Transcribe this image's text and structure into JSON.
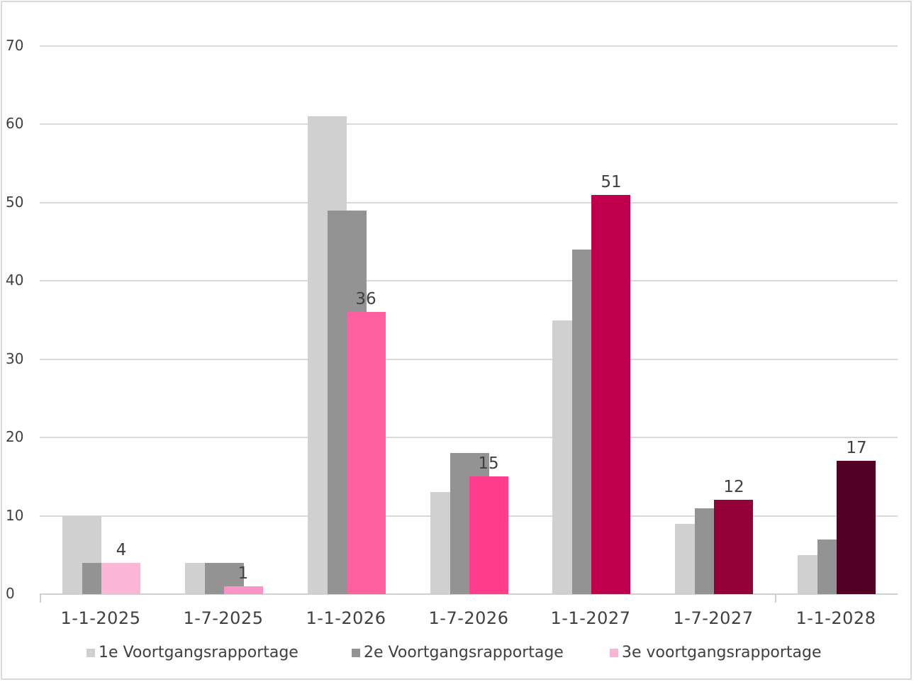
{
  "chart_data": {
    "type": "bar",
    "title": "",
    "xlabel": "",
    "ylabel": "",
    "ylim": [
      0,
      70
    ],
    "yticks": [
      0,
      10,
      20,
      30,
      40,
      50,
      60,
      70
    ],
    "grid": true,
    "legend_position": "bottom",
    "categories": [
      "1-1-2025",
      "1-7-2025",
      "1-1-2026",
      "1-7-2026",
      "1-1-2027",
      "1-7-2027",
      "1-1-2028"
    ],
    "series": [
      {
        "name": "1e Voortgangsrapportage",
        "color": "#d0d0d0",
        "values": [
          10,
          4,
          61,
          13,
          35,
          9,
          5
        ]
      },
      {
        "name": "2e Voortgangsrapportage",
        "color": "#939393",
        "values": [
          4,
          4,
          49,
          18,
          44,
          11,
          7
        ]
      },
      {
        "name": "3e voortgangsrapportage",
        "color": "#f7b6d3",
        "values": [
          4,
          1,
          36,
          15,
          51,
          12,
          17
        ],
        "point_colors": [
          "#fbb7d6",
          "#fc93c6",
          "#ff60a0",
          "#ff3d8a",
          "#c0004c",
          "#940038",
          "#520024"
        ],
        "data_labels": [
          "4",
          "1",
          "36",
          "15",
          "51",
          "12",
          "17"
        ]
      }
    ]
  },
  "legend": {
    "items": [
      {
        "label": "1e Voortgangsrapportage",
        "color": "#d0d0d0"
      },
      {
        "label": "2e Voortgangsrapportage",
        "color": "#939393"
      },
      {
        "label": "3e voortgangsrapportage",
        "color": "#f7b6d3"
      }
    ]
  }
}
